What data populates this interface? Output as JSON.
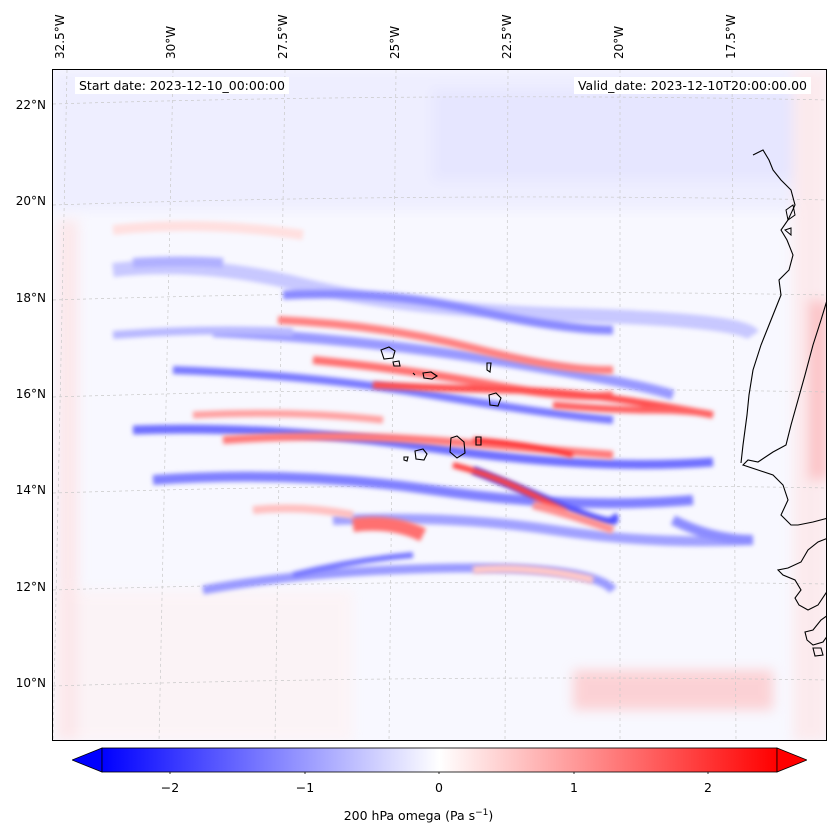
{
  "map": {
    "start_date": "Start date: 2023-12-10_00:00:00",
    "valid_date": "Valid_date: 2023-12-10T20:00:00.00",
    "lon_labels": [
      "32.5°W",
      "30°W",
      "27.5°W",
      "25°W",
      "22.5°W",
      "20°W",
      "17.5°W"
    ],
    "lat_labels": [
      "22°N",
      "20°N",
      "18°N",
      "16°N",
      "14°N",
      "12°N",
      "10°N"
    ],
    "islands": "Cape Verde",
    "coast": "West Africa"
  },
  "colorbar": {
    "ticks": [
      "−2",
      "−1",
      "0",
      "1",
      "2"
    ],
    "title": "200 hPa omega (Pa s",
    "title_sup": "−1",
    "title_end": ")",
    "colors": {
      "neg": "#0000ff",
      "mid": "#ffffff",
      "pos": "#ff0000"
    }
  }
}
